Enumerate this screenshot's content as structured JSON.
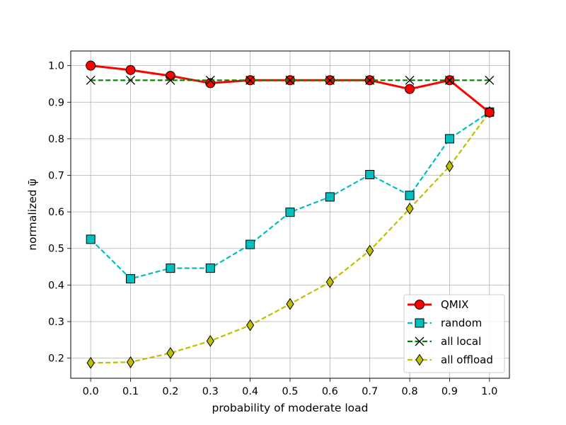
{
  "chart_data": {
    "type": "line",
    "title": "",
    "xlabel": "probability of moderate load",
    "ylabel": "normalized ψ̄",
    "x": [
      0.0,
      0.1,
      0.2,
      0.3,
      0.4,
      0.5,
      0.6,
      0.7,
      0.8,
      0.9,
      1.0
    ],
    "xticks": [
      "0.0",
      "0.1",
      "0.2",
      "0.3",
      "0.4",
      "0.5",
      "0.6",
      "0.7",
      "0.8",
      "0.9",
      "1.0"
    ],
    "yticks": [
      "0.2",
      "0.3",
      "0.4",
      "0.5",
      "0.6",
      "0.7",
      "0.8",
      "0.9",
      "1.0"
    ],
    "xlim": [
      -0.05,
      1.05
    ],
    "ylim": [
      0.145,
      1.04
    ],
    "grid": true,
    "legend_position": "bottom-right",
    "series": [
      {
        "name": "QMIX",
        "values": [
          1.0,
          0.988,
          0.972,
          0.952,
          0.96,
          0.96,
          0.96,
          0.96,
          0.936,
          0.96,
          0.872
        ],
        "color": "#ff0000",
        "marker": "circle",
        "line": "solid"
      },
      {
        "name": "random",
        "values": [
          0.525,
          0.417,
          0.446,
          0.446,
          0.511,
          0.599,
          0.641,
          0.702,
          0.645,
          0.8,
          0.873
        ],
        "color": "#00bfbf",
        "marker": "square",
        "line": "dashed"
      },
      {
        "name": "all local",
        "values": [
          0.96,
          0.96,
          0.96,
          0.96,
          0.96,
          0.96,
          0.96,
          0.96,
          0.96,
          0.96,
          0.96
        ],
        "color": "#008000",
        "marker": "x",
        "line": "dashed"
      },
      {
        "name": "all offload",
        "values": [
          0.187,
          0.189,
          0.214,
          0.247,
          0.29,
          0.348,
          0.408,
          0.494,
          0.609,
          0.725,
          0.873
        ],
        "color": "#bfbf00",
        "marker": "diamond",
        "line": "dashed"
      }
    ]
  }
}
